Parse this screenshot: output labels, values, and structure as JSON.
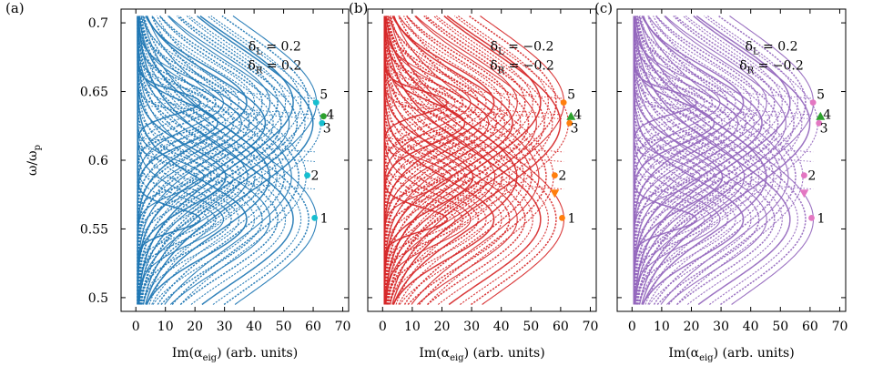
{
  "chart_data": [
    {
      "panel": "(a)",
      "type": "scatter",
      "color": "#1f77b4",
      "xlabel": "Im(α_eig) (arb. units)",
      "ylabel": "ω/ω_p",
      "xlim": [
        -5,
        72
      ],
      "ylim": [
        0.49,
        0.71
      ],
      "xticks": [
        0,
        10,
        20,
        30,
        40,
        50,
        60,
        70
      ],
      "yticks": [
        0.5,
        0.55,
        0.6,
        0.65,
        0.7
      ],
      "annotation": [
        "δ_L = 0.2",
        "δ_R = 0.2"
      ],
      "bands": [
        {
          "center": 0.642,
          "peak_x": 60.5
        },
        {
          "center": 0.627,
          "peak_x": 62.0
        },
        {
          "center": 0.588,
          "peak_x": 57.0
        },
        {
          "center": 0.557,
          "peak_x": 60.5
        }
      ],
      "modes": [
        {
          "label": "5",
          "x": 61.0,
          "y": 0.642,
          "marker": "circle",
          "color": "#17becf"
        },
        {
          "label": "4",
          "x": 63.5,
          "y": 0.632,
          "marker": "circle",
          "color": "#2ca02c"
        },
        {
          "label": "3",
          "x": 63.0,
          "y": 0.627,
          "marker": "circle",
          "color": "#17becf"
        },
        {
          "label": "2",
          "x": 58.0,
          "y": 0.589,
          "marker": "circle",
          "color": "#17becf"
        },
        {
          "label": "1",
          "x": 60.5,
          "y": 0.558,
          "marker": "circle",
          "color": "#17becf"
        }
      ]
    },
    {
      "panel": "(b)",
      "type": "scatter",
      "color": "#d62728",
      "xlabel": "Im(α_eig) (arb. units)",
      "ylabel": "",
      "xlim": [
        -5,
        72
      ],
      "ylim": [
        0.49,
        0.71
      ],
      "xticks": [
        0,
        10,
        20,
        30,
        40,
        50,
        60,
        70
      ],
      "yticks": [
        0.5,
        0.55,
        0.6,
        0.65,
        0.7
      ],
      "annotation": [
        "δ_L = −0.2",
        "δ_R = −0.2"
      ],
      "bands": [
        {
          "center": 0.642,
          "peak_x": 60.5
        },
        {
          "center": 0.627,
          "peak_x": 62.0
        },
        {
          "center": 0.588,
          "peak_x": 57.0
        },
        {
          "center": 0.557,
          "peak_x": 60.5
        }
      ],
      "modes": [
        {
          "label": "5",
          "x": 61.0,
          "y": 0.642,
          "marker": "circle",
          "color": "#ff7f0e"
        },
        {
          "label": "4",
          "x": 63.5,
          "y": 0.632,
          "marker": "triangle-up",
          "color": "#2ca02c"
        },
        {
          "label": "3",
          "x": 63.0,
          "y": 0.627,
          "marker": "circle",
          "color": "#ff7f0e"
        },
        {
          "label": "2",
          "x": 58.0,
          "y": 0.589,
          "marker": "circle",
          "color": "#ff7f0e"
        },
        {
          "label": "",
          "x": 58.0,
          "y": 0.576,
          "marker": "triangle-down",
          "color": "#ff7f0e"
        },
        {
          "label": "1",
          "x": 60.5,
          "y": 0.558,
          "marker": "circle",
          "color": "#ff7f0e"
        }
      ]
    },
    {
      "panel": "(c)",
      "type": "scatter",
      "color": "#9467bd",
      "xlabel": "Im(α_eig) (arb. units)",
      "ylabel": "",
      "xlim": [
        -5,
        72
      ],
      "ylim": [
        0.49,
        0.71
      ],
      "xticks": [
        0,
        10,
        20,
        30,
        40,
        50,
        60,
        70
      ],
      "yticks": [
        0.5,
        0.55,
        0.6,
        0.65,
        0.7
      ],
      "annotation": [
        "δ_L = 0.2",
        "δ_R = −0.2"
      ],
      "bands": [
        {
          "center": 0.642,
          "peak_x": 60.5
        },
        {
          "center": 0.627,
          "peak_x": 62.0
        },
        {
          "center": 0.588,
          "peak_x": 57.0
        },
        {
          "center": 0.557,
          "peak_x": 60.5
        }
      ],
      "modes": [
        {
          "label": "5",
          "x": 61.0,
          "y": 0.642,
          "marker": "circle",
          "color": "#e377c2"
        },
        {
          "label": "4",
          "x": 63.5,
          "y": 0.632,
          "marker": "triangle-up",
          "color": "#2ca02c"
        },
        {
          "label": "3",
          "x": 63.0,
          "y": 0.627,
          "marker": "circle",
          "color": "#e377c2"
        },
        {
          "label": "2",
          "x": 58.0,
          "y": 0.589,
          "marker": "circle",
          "color": "#e377c2"
        },
        {
          "label": "",
          "x": 58.0,
          "y": 0.576,
          "marker": "triangle-down",
          "color": "#e377c2"
        },
        {
          "label": "1",
          "x": 60.5,
          "y": 0.558,
          "marker": "circle",
          "color": "#e377c2"
        }
      ]
    }
  ]
}
